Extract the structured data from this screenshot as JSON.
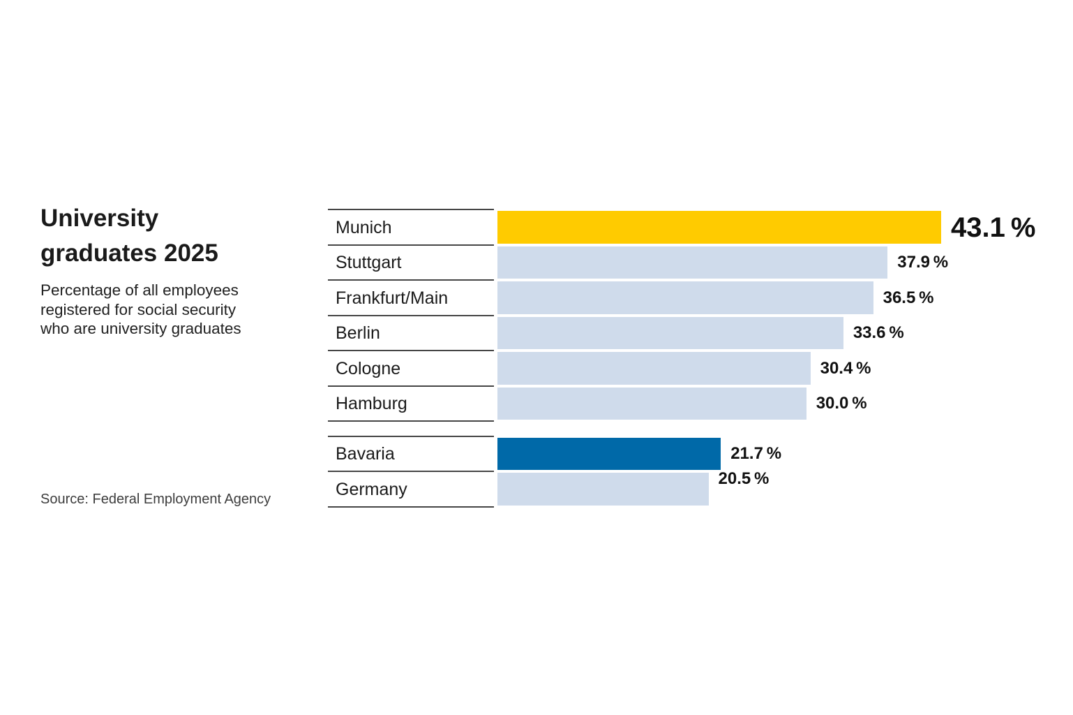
{
  "header": {
    "title_lines": [
      "University",
      "graduates 2025"
    ],
    "subtitle_lines": [
      "Percentage of all employees",
      "registered for social security",
      "who are university graduates"
    ]
  },
  "source": "Source: Federal Employment Agency",
  "chart_data": {
    "type": "bar",
    "orientation": "horizontal",
    "title": "University graduates 2025",
    "subtitle": "Percentage of all employees registered for social security who are university graduates",
    "value_unit": "%",
    "xlim": [
      0,
      43.1
    ],
    "grid": false,
    "legend": false,
    "groups": [
      {
        "name": "cities",
        "rows": [
          {
            "label": "Munich",
            "value": 43.1,
            "color": "highlight_yellow",
            "value_label_emphasis": true
          },
          {
            "label": "Stuttgart",
            "value": 37.9,
            "color": "default"
          },
          {
            "label": "Frankfurt/Main",
            "value": 36.5,
            "color": "default"
          },
          {
            "label": "Berlin",
            "value": 33.6,
            "color": "default"
          },
          {
            "label": "Cologne",
            "value": 30.4,
            "color": "default"
          },
          {
            "label": "Hamburg",
            "value": 30.0,
            "color": "default"
          }
        ]
      },
      {
        "name": "regions",
        "rows": [
          {
            "label": "Bavaria",
            "value": 21.7,
            "color": "highlight_blue"
          },
          {
            "label": "Germany",
            "value": 20.5,
            "color": "default"
          }
        ]
      }
    ],
    "colors": {
      "default": "#cfdbeb",
      "highlight_yellow": "#ffcb00",
      "highlight_blue": "#0069a8",
      "divider": "#454545"
    }
  }
}
